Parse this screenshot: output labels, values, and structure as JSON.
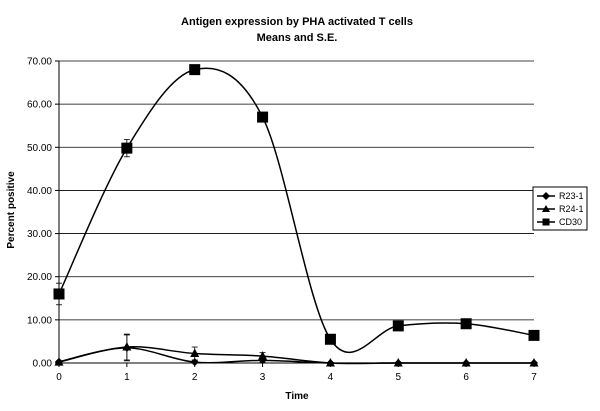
{
  "chart_data": {
    "type": "line",
    "title": "Antigen expression by PHA activated T cells",
    "subtitle": "Means and S.E.",
    "xlabel": "Time",
    "ylabel": "Percent positive",
    "x": [
      0,
      1,
      2,
      3,
      4,
      5,
      6,
      7
    ],
    "x_tick_labels": [
      "0",
      "1",
      "2",
      "3",
      "4",
      "5",
      "6",
      "7"
    ],
    "y_tick_labels": [
      "0.00",
      "10.00",
      "20.00",
      "30.00",
      "40.00",
      "50.00",
      "60.00",
      "70.00"
    ],
    "xlim": [
      0,
      7
    ],
    "ylim": [
      0,
      70
    ],
    "grid": "horizontal",
    "legend_position": "right",
    "series": [
      {
        "name": "R23-1",
        "marker": "diamond",
        "values": [
          0.3,
          3.5,
          0.2,
          0.6,
          0.0,
          0.0,
          0.0,
          0.0
        ],
        "errors": [
          0.2,
          3.0,
          0.3,
          0.5,
          0.1,
          0.0,
          0.0,
          0.0
        ]
      },
      {
        "name": "R24-1",
        "marker": "triangle",
        "values": [
          0.2,
          3.7,
          2.2,
          1.6,
          0.0,
          0.0,
          0.0,
          0.0
        ],
        "errors": [
          0.2,
          3.0,
          1.5,
          0.8,
          0.1,
          0.0,
          0.0,
          0.0
        ]
      },
      {
        "name": "CD30",
        "marker": "square",
        "values": [
          16.0,
          49.8,
          68.0,
          57.0,
          5.5,
          8.6,
          9.1,
          6.4
        ],
        "errors": [
          2.5,
          2.0,
          0.5,
          0.5,
          0.5,
          0.4,
          0.4,
          0.3
        ]
      }
    ]
  }
}
